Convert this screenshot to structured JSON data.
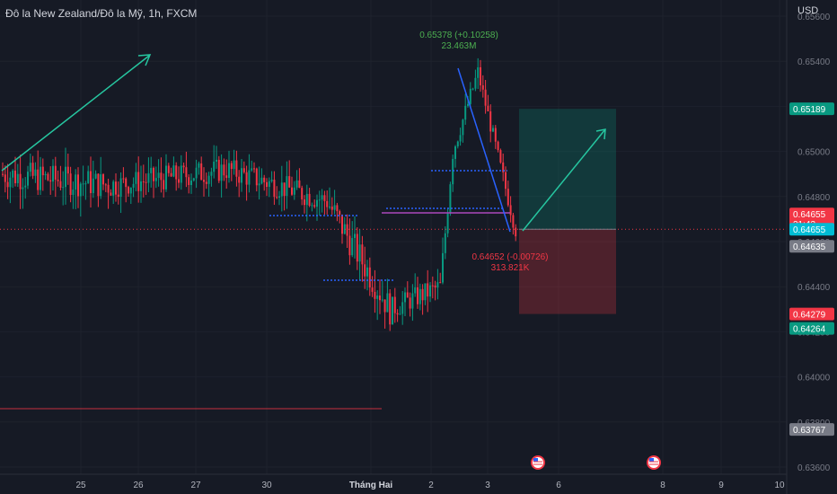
{
  "chart_data": {
    "type": "candlestick",
    "title": "Đô la New Zealand/Đô la Mỹ, 1h, FXCM",
    "currency": "USD",
    "y_ticks": [
      0.636,
      0.638,
      0.64,
      0.642,
      0.644,
      0.646,
      0.648,
      0.65,
      0.652,
      0.654,
      0.656
    ],
    "y_tick_labels": [
      "0.63600",
      "0.63800",
      "0.64000",
      "0.64200",
      "0.64400",
      "0.64600",
      "0.64800",
      "0.65000",
      "0.65200",
      "0.65400",
      "0.65600"
    ],
    "x_tick_labels": [
      "25",
      "26",
      "27",
      "30",
      "Tháng Hai",
      "2",
      "3",
      "6",
      "8",
      "9",
      "10"
    ],
    "price_badges": [
      {
        "id": "target",
        "value": "0.65189",
        "price": 0.65189,
        "color": "#089981"
      },
      {
        "id": "last",
        "value": "0.64655",
        "sub": "21:43",
        "price": 0.64655,
        "color": "#f23645"
      },
      {
        "id": "bid",
        "value": "0.64655",
        "price": 0.64655,
        "color": "#00bcd4"
      },
      {
        "id": "ask",
        "value": "0.64635",
        "price": 0.64635,
        "color": "#787b86"
      },
      {
        "id": "stop",
        "value": "0.64279",
        "price": 0.64279,
        "color": "#f23645"
      },
      {
        "id": "stop2",
        "value": "0.64264",
        "price": 0.64264,
        "color": "#089981"
      },
      {
        "id": "low",
        "value": "0.63767",
        "price": 0.63767,
        "color": "#787b86"
      }
    ],
    "annotations": {
      "high_line1": "0.65378 (+0.10258)",
      "high_line2": "23.463M",
      "low_line1": "0.64652 (-0.00726)",
      "low_line2": "313.821K"
    },
    "events": [
      {
        "day": "5"
      },
      {
        "day": "7"
      }
    ],
    "colors": {
      "up": "#089981",
      "down": "#f23645",
      "background": "#161a25",
      "grid": "#242833"
    },
    "grid": true,
    "segments": [
      {
        "n": 45,
        "start": 0.649,
        "end": 0.6485,
        "vol": 0.0013
      },
      {
        "n": 45,
        "start": 0.6485,
        "end": 0.6492,
        "vol": 0.0011
      },
      {
        "n": 40,
        "start": 0.6492,
        "end": 0.6478,
        "vol": 0.0011
      },
      {
        "n": 25,
        "start": 0.6478,
        "end": 0.643,
        "vol": 0.0014
      },
      {
        "n": 20,
        "start": 0.643,
        "end": 0.644,
        "vol": 0.001
      },
      {
        "n": 5,
        "start": 0.644,
        "end": 0.65,
        "vol": 0.001
      },
      {
        "n": 10,
        "start": 0.65,
        "end": 0.6535,
        "vol": 0.0008
      },
      {
        "n": 15,
        "start": 0.6535,
        "end": 0.6465,
        "vol": 0.0007
      }
    ]
  }
}
